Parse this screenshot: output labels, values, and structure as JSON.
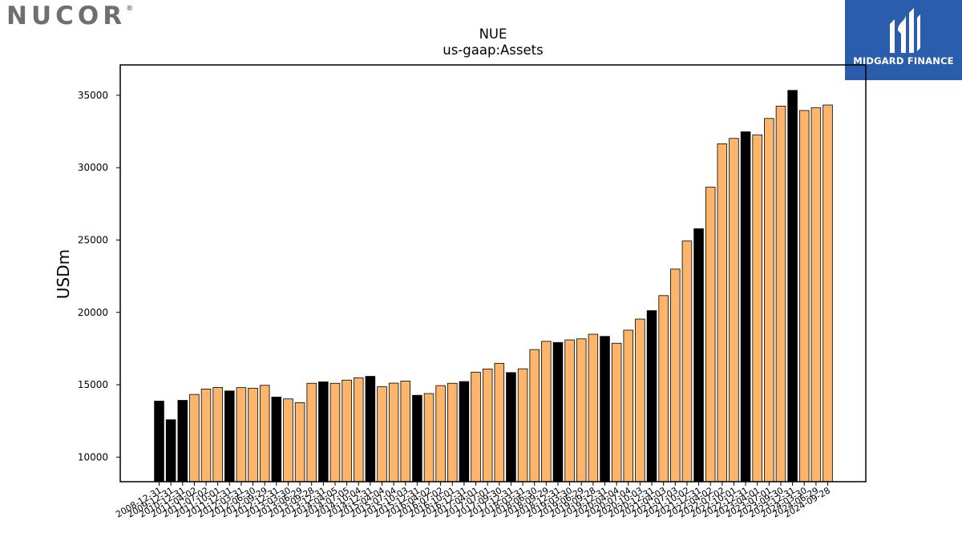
{
  "logos": {
    "left": "NUCOR",
    "left_mark": "®",
    "right": "MIDGARD FINANCE"
  },
  "chart_data": {
    "type": "bar",
    "title": "NUE",
    "subtitle": "us-gaap:Assets",
    "xlabel": "",
    "ylabel": "USDm",
    "ylim": [
      8300,
      37100
    ],
    "yticks": [
      10000,
      15000,
      20000,
      25000,
      30000,
      35000
    ],
    "grid": false,
    "colors": {
      "annual": "#000000",
      "quarterly": "#fdb56c"
    },
    "categories": [
      "2008-12-31",
      "2009-12-31",
      "2010-12-31",
      "2011-04-02",
      "2011-07-02",
      "2011-10-01",
      "2011-12-31",
      "2012-03-31",
      "2012-06-30",
      "2012-09-29",
      "2012-12-31",
      "2013-03-30",
      "2013-06-29",
      "2013-09-28",
      "2013-12-31",
      "2014-04-05",
      "2014-07-05",
      "2014-10-04",
      "2014-12-31",
      "2015-04-04",
      "2015-07-04",
      "2015-10-03",
      "2015-12-31",
      "2016-04-02",
      "2016-07-02",
      "2016-10-01",
      "2016-12-31",
      "2017-04-01",
      "2017-07-01",
      "2017-09-30",
      "2017-12-31",
      "2018-03-31",
      "2018-06-30",
      "2018-09-29",
      "2018-12-31",
      "2019-03-30",
      "2019-06-29",
      "2019-09-28",
      "2019-12-31",
      "2020-04-04",
      "2020-07-04",
      "2020-10-03",
      "2020-12-31",
      "2021-04-03",
      "2021-07-03",
      "2021-10-02",
      "2021-12-31",
      "2022-04-02",
      "2022-07-02",
      "2022-10-01",
      "2022-12-31",
      "2023-04-01",
      "2023-07-01",
      "2023-09-30",
      "2023-12-31",
      "2024-03-30",
      "2024-06-29",
      "2024-09-28"
    ],
    "values": [
      13870,
      12580,
      13920,
      14330,
      14700,
      14810,
      14570,
      14800,
      14760,
      14960,
      14150,
      14020,
      13760,
      15100,
      15200,
      15100,
      15320,
      15480,
      15580,
      14860,
      15110,
      15250,
      14270,
      14390,
      14940,
      15100,
      15220,
      15870,
      16090,
      16480,
      15840,
      16100,
      17430,
      18000,
      17920,
      18100,
      18170,
      18490,
      18340,
      17870,
      18770,
      19540,
      20120,
      21160,
      22990,
      24930,
      25780,
      28650,
      31650,
      32020,
      32480,
      32270,
      33400,
      34250,
      35340,
      33950,
      34150,
      34330
    ],
    "annual": [
      true,
      true,
      true,
      false,
      false,
      false,
      true,
      false,
      false,
      false,
      true,
      false,
      false,
      false,
      true,
      false,
      false,
      false,
      true,
      false,
      false,
      false,
      true,
      false,
      false,
      false,
      true,
      false,
      false,
      false,
      true,
      false,
      false,
      false,
      true,
      false,
      false,
      false,
      true,
      false,
      false,
      false,
      true,
      false,
      false,
      false,
      true,
      false,
      false,
      false,
      true,
      false,
      false,
      false,
      true,
      false,
      false,
      false
    ]
  }
}
